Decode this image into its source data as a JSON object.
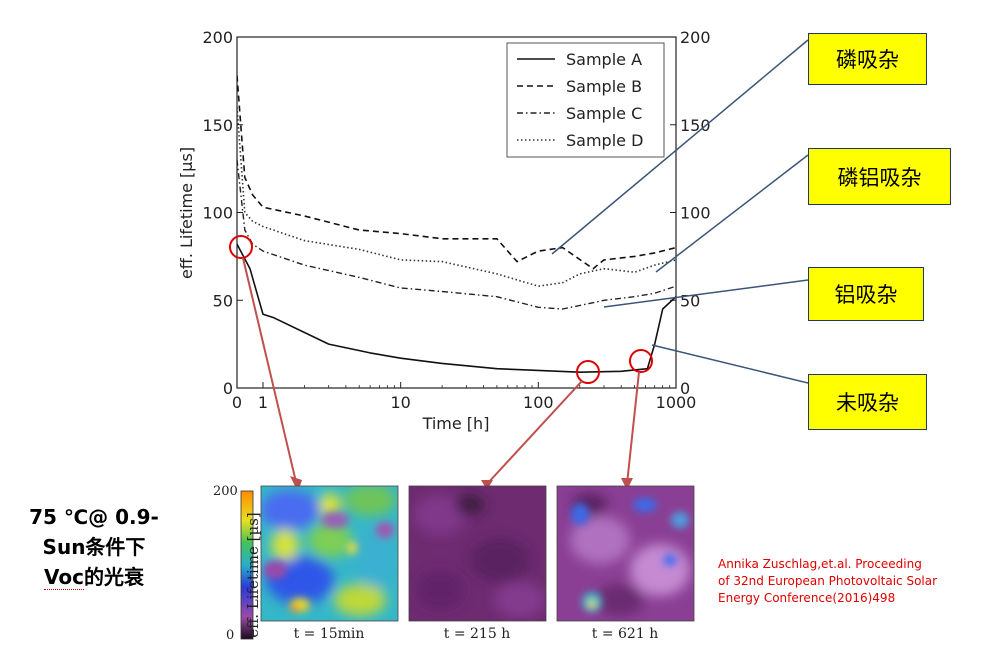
{
  "chart_data": {
    "type": "line",
    "xlabel": "Time [h]",
    "ylabel": "eff. Lifetime [µs]",
    "x_ticks": [
      "0",
      "1",
      "10",
      "100",
      "1000"
    ],
    "y_ticks": [
      "0",
      "50",
      "100",
      "150",
      "200"
    ],
    "y_ticks_right": [
      "0",
      "50",
      "100",
      "150",
      "200"
    ],
    "ylim": [
      0,
      200
    ],
    "x_scale": "linear 0-1 h, log 1-1000 h",
    "legend_position": "top-right",
    "series": [
      {
        "name": "Sample A",
        "style": "solid",
        "x": [
          0,
          0.5,
          1,
          1.2,
          3,
          6,
          10,
          20,
          50,
          100,
          200,
          400,
          620,
          700,
          800,
          1000
        ],
        "y": [
          82,
          68,
          42,
          40,
          25,
          20,
          17,
          14,
          11,
          10,
          9,
          9.5,
          11,
          25,
          45,
          52
        ]
      },
      {
        "name": "Sample B",
        "style": "dashed",
        "x": [
          0,
          0.3,
          0.6,
          1,
          2,
          5,
          10,
          20,
          50,
          70,
          100,
          150,
          250,
          300,
          500,
          700,
          1000
        ],
        "y": [
          178,
          120,
          110,
          103,
          98,
          90,
          88,
          85,
          85,
          72,
          78,
          80,
          68,
          73,
          75,
          77,
          80
        ]
      },
      {
        "name": "Sample C",
        "style": "dash-dot",
        "x": [
          0,
          0.3,
          0.6,
          1,
          2,
          5,
          10,
          20,
          50,
          100,
          150,
          200,
          300,
          500,
          700,
          1000
        ],
        "y": [
          130,
          90,
          82,
          78,
          70,
          63,
          57,
          55,
          52,
          46,
          45,
          47,
          50,
          52,
          54,
          58
        ]
      },
      {
        "name": "Sample D",
        "style": "dotted",
        "x": [
          0,
          0.3,
          0.6,
          1,
          2,
          5,
          10,
          20,
          50,
          100,
          150,
          200,
          300,
          500,
          700,
          1000
        ],
        "y": [
          160,
          100,
          95,
          92,
          84,
          79,
          73,
          72,
          65,
          58,
          60,
          65,
          68,
          66,
          70,
          73
        ]
      }
    ]
  },
  "callouts": {
    "p_gettering": "磷吸杂",
    "p_al_gettering": "磷铝吸杂",
    "al_gettering": "铝吸杂",
    "no_gettering": "未吸杂"
  },
  "condition": {
    "line1": "75 ℃@ 0.9-",
    "line2": "Sun条件下",
    "line3_voc": "Voc",
    "line3_rest": "的光衰"
  },
  "citation": {
    "line1": "Annika Zuschlag,et.al. Proceeding",
    "line2": "of 32nd European Photovoltaic Solar",
    "line3": "Energy Conference(2016)498"
  },
  "lifetime_maps": {
    "colorbar_title": "eff. Lifetime [µs]",
    "colorbar_ticks": [
      "200",
      "0"
    ],
    "maps": [
      {
        "label": "t = 15min"
      },
      {
        "label": "t = 215 h"
      },
      {
        "label": "t = 621 h"
      }
    ]
  },
  "colors": {
    "callout_fill": "#ffff00",
    "callout_line": "#3b5578",
    "marker_circle": "#e00000",
    "arrow": "#c0504d",
    "citation": "#e00000"
  }
}
